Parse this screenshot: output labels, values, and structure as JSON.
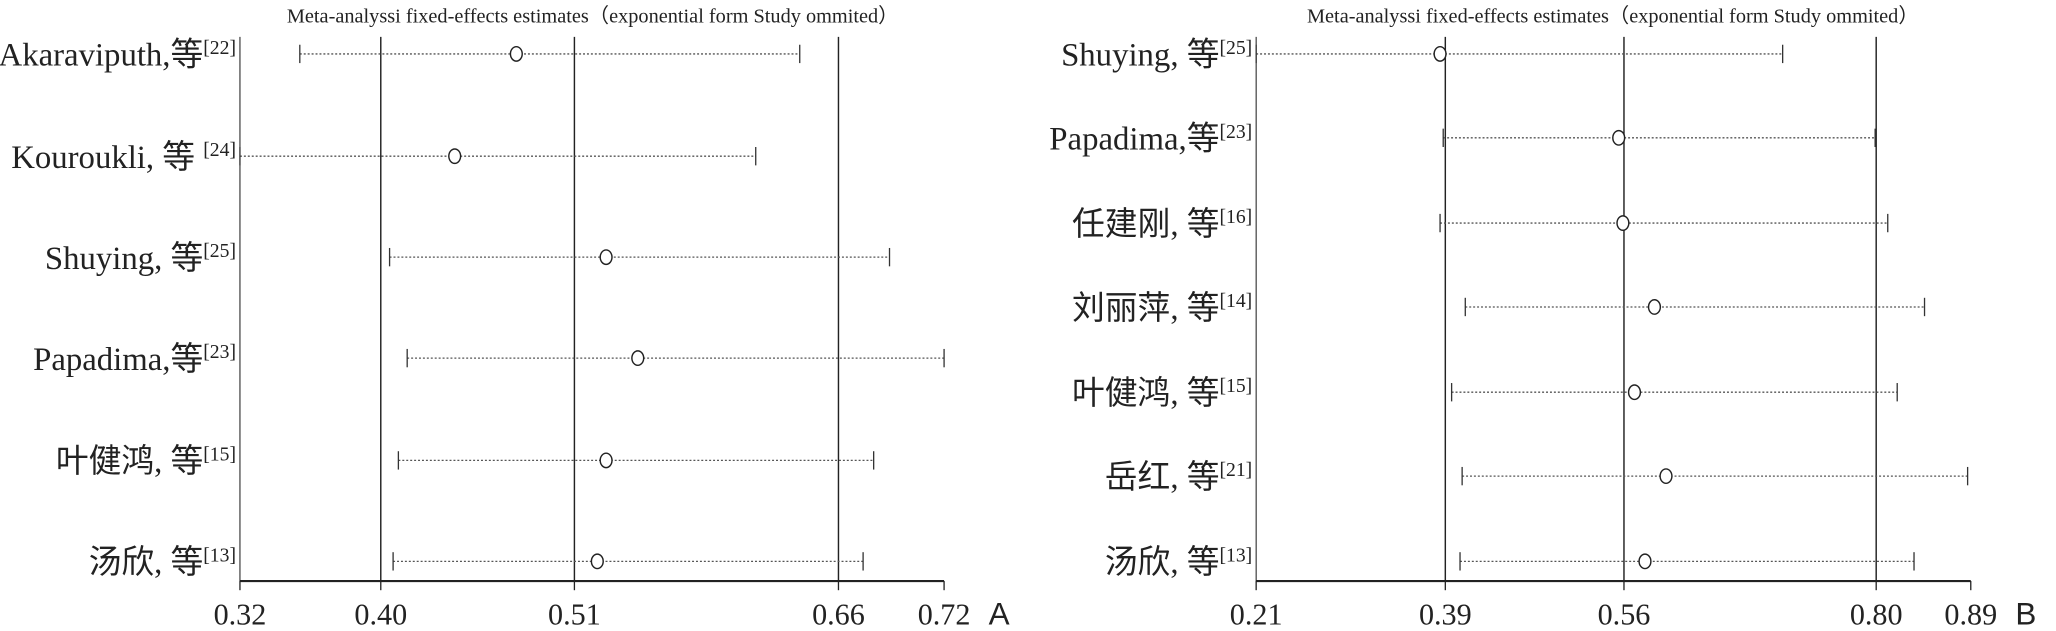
{
  "chart_data": [
    {
      "type": "forest",
      "panel_label": "A",
      "title": "Meta-analyssi fixed-effects estimates（exponential form Study ommited）",
      "xlim": [
        0.32,
        0.72
      ],
      "xticks": [
        "0.32",
        "0.40",
        "0.51",
        "0.66",
        "0.72"
      ],
      "tick_values": [
        0.32,
        0.4,
        0.51,
        0.66,
        0.72
      ],
      "reference_lines": [
        0.32,
        0.4,
        0.51,
        0.66
      ],
      "studies": [
        {
          "name": "Akaraviputh,等",
          "ref": "[22]",
          "lower": 0.354,
          "estimate": 0.477,
          "upper": 0.638
        },
        {
          "name": "Kouroukli, 等 ",
          "ref": "[24]",
          "lower": 0.32,
          "estimate": 0.442,
          "upper": 0.613
        },
        {
          "name": "Shuying, 等",
          "ref": "[25]",
          "lower": 0.405,
          "estimate": 0.528,
          "upper": 0.689
        },
        {
          "name": "Papadima,等",
          "ref": "[23]",
          "lower": 0.415,
          "estimate": 0.546,
          "upper": 0.72
        },
        {
          "name": "叶健鸿, 等",
          "ref": "[15]",
          "lower": 0.41,
          "estimate": 0.528,
          "upper": 0.68
        },
        {
          "name": "汤欣, 等",
          "ref": "[13]",
          "lower": 0.407,
          "estimate": 0.523,
          "upper": 0.674
        }
      ]
    },
    {
      "type": "forest",
      "panel_label": "B",
      "title": "Meta-analyssi fixed-effects estimates（exponential form Study ommited）",
      "xlim": [
        0.21,
        0.89
      ],
      "xticks": [
        "0.21",
        "0.39",
        "0.56",
        "0.80",
        "0.89"
      ],
      "tick_values": [
        0.21,
        0.39,
        0.56,
        0.8,
        0.89
      ],
      "reference_lines": [
        0.21,
        0.39,
        0.56,
        0.8
      ],
      "studies": [
        {
          "name": "Shuying, 等",
          "ref": "[25]",
          "lower": 0.21,
          "estimate": 0.385,
          "upper": 0.711
        },
        {
          "name": "Papadima,等",
          "ref": "[23]",
          "lower": 0.388,
          "estimate": 0.555,
          "upper": 0.799
        },
        {
          "name": "任建刚, 等",
          "ref": "[16]",
          "lower": 0.385,
          "estimate": 0.559,
          "upper": 0.811
        },
        {
          "name": "刘丽萍, 等",
          "ref": "[14]",
          "lower": 0.409,
          "estimate": 0.589,
          "upper": 0.846
        },
        {
          "name": "叶健鸿, 等",
          "ref": "[15]",
          "lower": 0.396,
          "estimate": 0.57,
          "upper": 0.82
        },
        {
          "name": "岳红, 等",
          "ref": "[21]",
          "lower": 0.406,
          "estimate": 0.6,
          "upper": 0.887
        },
        {
          "name": "汤欣, 等",
          "ref": "[13]",
          "lower": 0.404,
          "estimate": 0.58,
          "upper": 0.836
        }
      ]
    }
  ]
}
